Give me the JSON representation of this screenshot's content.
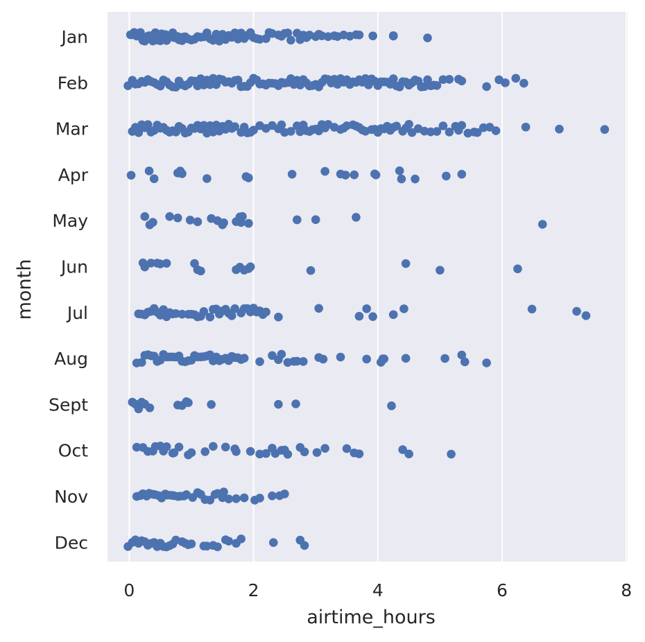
{
  "chart_data": {
    "type": "scatter",
    "title": "",
    "xlabel": "airtime_hours",
    "ylabel": "month",
    "xlim": [
      -0.35,
      8.02
    ],
    "x_ticks": [
      0,
      2,
      4,
      6,
      8
    ],
    "x_tick_labels": [
      "0",
      "2",
      "4",
      "6",
      "8"
    ],
    "categories": [
      "Jan",
      "Feb",
      "Mar",
      "Apr",
      "May",
      "Jun",
      "Jul",
      "Aug",
      "Sept",
      "Oct",
      "Nov",
      "Dec"
    ],
    "grid": true,
    "background_color": "#eaeaf2",
    "point_color": "#4c72b0",
    "points": {
      "Jan": [
        0.02,
        0.05,
        0.08,
        0.1,
        0.12,
        0.15,
        0.18,
        0.2,
        0.22,
        0.25,
        0.28,
        0.3,
        0.32,
        0.35,
        0.38,
        0.4,
        0.42,
        0.45,
        0.48,
        0.5,
        0.52,
        0.55,
        0.58,
        0.6,
        0.62,
        0.65,
        0.68,
        0.7,
        0.72,
        0.75,
        0.78,
        0.8,
        0.82,
        0.85,
        0.88,
        0.9,
        0.95,
        1.0,
        1.05,
        1.1,
        1.15,
        1.2,
        1.25,
        1.3,
        1.35,
        1.4,
        1.45,
        1.5,
        1.55,
        1.6,
        1.65,
        1.7,
        1.75,
        1.8,
        1.85,
        1.9,
        1.95,
        2.0,
        2.05,
        2.1,
        2.2,
        2.25,
        2.3,
        2.4,
        2.45,
        2.5,
        2.55,
        2.6,
        2.7,
        2.75,
        2.8,
        2.85,
        2.9,
        3.0,
        3.05,
        3.1,
        3.2,
        3.3,
        3.35,
        3.45,
        3.55,
        3.65,
        3.7,
        3.92,
        4.25,
        4.25,
        4.8
      ],
      "Feb": [
        -0.02,
        0.05,
        0.1,
        0.15,
        0.2,
        0.25,
        0.3,
        0.35,
        0.4,
        0.45,
        0.5,
        0.55,
        0.6,
        0.65,
        0.7,
        0.75,
        0.8,
        0.85,
        0.9,
        0.95,
        1.0,
        1.05,
        1.1,
        1.15,
        1.2,
        1.25,
        1.3,
        1.35,
        1.4,
        1.45,
        1.5,
        1.55,
        1.6,
        1.65,
        1.7,
        1.75,
        1.8,
        1.85,
        1.9,
        1.95,
        2.0,
        2.05,
        2.1,
        2.15,
        2.2,
        2.25,
        2.3,
        2.35,
        2.4,
        2.45,
        2.5,
        2.55,
        2.6,
        2.65,
        2.7,
        2.75,
        2.8,
        2.85,
        2.9,
        2.95,
        3.0,
        3.05,
        3.1,
        3.15,
        3.2,
        3.25,
        3.3,
        3.35,
        3.4,
        3.45,
        3.5,
        3.55,
        3.6,
        3.65,
        3.7,
        3.75,
        3.8,
        3.85,
        3.9,
        3.95,
        4.0,
        4.05,
        4.1,
        4.15,
        4.2,
        4.25,
        4.3,
        4.35,
        4.4,
        4.45,
        4.5,
        4.55,
        4.6,
        4.65,
        4.7,
        4.75,
        4.8,
        4.85,
        4.9,
        4.95,
        5.05,
        5.15,
        5.3,
        5.35,
        5.75,
        5.95,
        6.05,
        6.22,
        6.35
      ],
      "Mar": [
        0.05,
        0.1,
        0.15,
        0.2,
        0.25,
        0.3,
        0.35,
        0.4,
        0.45,
        0.5,
        0.55,
        0.6,
        0.65,
        0.7,
        0.75,
        0.8,
        0.85,
        0.9,
        0.95,
        1.0,
        1.05,
        1.1,
        1.15,
        1.2,
        1.25,
        1.3,
        1.35,
        1.4,
        1.45,
        1.5,
        1.55,
        1.6,
        1.65,
        1.7,
        1.8,
        1.85,
        1.9,
        1.95,
        2.0,
        2.1,
        2.2,
        2.3,
        2.4,
        2.45,
        2.5,
        2.6,
        2.7,
        2.75,
        2.8,
        2.85,
        2.9,
        2.95,
        3.0,
        3.05,
        3.1,
        3.15,
        3.2,
        3.3,
        3.4,
        3.45,
        3.5,
        3.6,
        3.65,
        3.7,
        3.75,
        3.8,
        3.9,
        3.95,
        4.0,
        4.05,
        4.1,
        4.15,
        4.2,
        4.25,
        4.3,
        4.4,
        4.45,
        4.5,
        4.55,
        4.65,
        4.75,
        4.85,
        4.95,
        5.05,
        5.15,
        5.25,
        5.3,
        5.35,
        5.45,
        5.55,
        5.6,
        5.7,
        5.8,
        5.9,
        6.38,
        6.92,
        7.65
      ],
      "Apr": [
        0.03,
        0.32,
        0.4,
        0.78,
        0.82,
        0.85,
        1.25,
        1.88,
        1.92,
        2.62,
        3.15,
        3.4,
        3.48,
        3.62,
        3.95,
        3.97,
        4.35,
        4.38,
        4.6,
        5.1,
        5.35
      ],
      "May": [
        0.25,
        0.33,
        0.38,
        0.65,
        0.78,
        0.98,
        1.1,
        1.32,
        1.42,
        1.5,
        1.52,
        1.72,
        1.78,
        1.8,
        1.82,
        1.92,
        2.7,
        3.0,
        3.65,
        6.65
      ],
      "Jun": [
        0.22,
        0.25,
        0.35,
        0.45,
        0.5,
        0.6,
        1.05,
        1.1,
        1.15,
        1.72,
        1.78,
        1.85,
        1.92,
        1.95,
        2.92,
        4.45,
        5.0,
        6.25
      ],
      "Jul": [
        0.15,
        0.2,
        0.25,
        0.3,
        0.35,
        0.4,
        0.45,
        0.5,
        0.55,
        0.6,
        0.65,
        0.7,
        0.75,
        0.85,
        0.95,
        1.0,
        1.05,
        1.1,
        1.15,
        1.2,
        1.3,
        1.35,
        1.4,
        1.45,
        1.5,
        1.55,
        1.6,
        1.65,
        1.7,
        1.8,
        1.85,
        1.9,
        1.95,
        2.0,
        2.05,
        2.1,
        2.15,
        2.2,
        2.4,
        3.05,
        3.7,
        3.82,
        3.92,
        4.25,
        4.42,
        6.48,
        7.2,
        7.35
      ],
      "Aug": [
        0.12,
        0.2,
        0.25,
        0.3,
        0.35,
        0.4,
        0.45,
        0.5,
        0.55,
        0.6,
        0.65,
        0.7,
        0.75,
        0.8,
        0.85,
        0.9,
        0.95,
        1.0,
        1.05,
        1.1,
        1.15,
        1.2,
        1.25,
        1.3,
        1.35,
        1.4,
        1.45,
        1.5,
        1.55,
        1.6,
        1.65,
        1.7,
        1.75,
        1.8,
        1.85,
        2.1,
        2.3,
        2.4,
        2.45,
        2.55,
        2.65,
        2.7,
        2.8,
        3.05,
        3.12,
        3.4,
        3.82,
        4.05,
        4.08,
        4.1,
        4.45,
        5.08,
        5.35,
        5.4,
        5.75
      ],
      "Sept": [
        0.05,
        0.1,
        0.15,
        0.2,
        0.25,
        0.33,
        0.78,
        0.85,
        0.92,
        0.95,
        1.32,
        2.4,
        2.68,
        4.22
      ],
      "Oct": [
        0.12,
        0.22,
        0.3,
        0.38,
        0.42,
        0.5,
        0.55,
        0.6,
        0.7,
        0.72,
        0.8,
        0.95,
        1.0,
        1.22,
        1.35,
        1.55,
        1.7,
        1.72,
        1.95,
        2.1,
        2.2,
        2.3,
        2.35,
        2.45,
        2.5,
        2.55,
        2.75,
        2.82,
        3.02,
        3.15,
        3.5,
        3.62,
        3.7,
        4.4,
        4.5,
        5.18
      ],
      "Nov": [
        0.12,
        0.18,
        0.22,
        0.28,
        0.32,
        0.38,
        0.42,
        0.48,
        0.52,
        0.58,
        0.62,
        0.68,
        0.72,
        0.78,
        0.82,
        0.88,
        0.92,
        1.02,
        1.1,
        1.15,
        1.22,
        1.3,
        1.38,
        1.42,
        1.5,
        1.52,
        1.6,
        1.72,
        1.85,
        2.02,
        2.1,
        2.3,
        2.42,
        2.5
      ],
      "Dec": [
        -0.02,
        0.05,
        0.1,
        0.15,
        0.2,
        0.25,
        0.3,
        0.35,
        0.4,
        0.45,
        0.5,
        0.55,
        0.6,
        0.65,
        0.7,
        0.75,
        0.85,
        0.9,
        0.95,
        1.0,
        1.2,
        1.25,
        1.35,
        1.42,
        1.55,
        1.6,
        1.72,
        1.8,
        2.32,
        2.75,
        2.82
      ]
    }
  }
}
